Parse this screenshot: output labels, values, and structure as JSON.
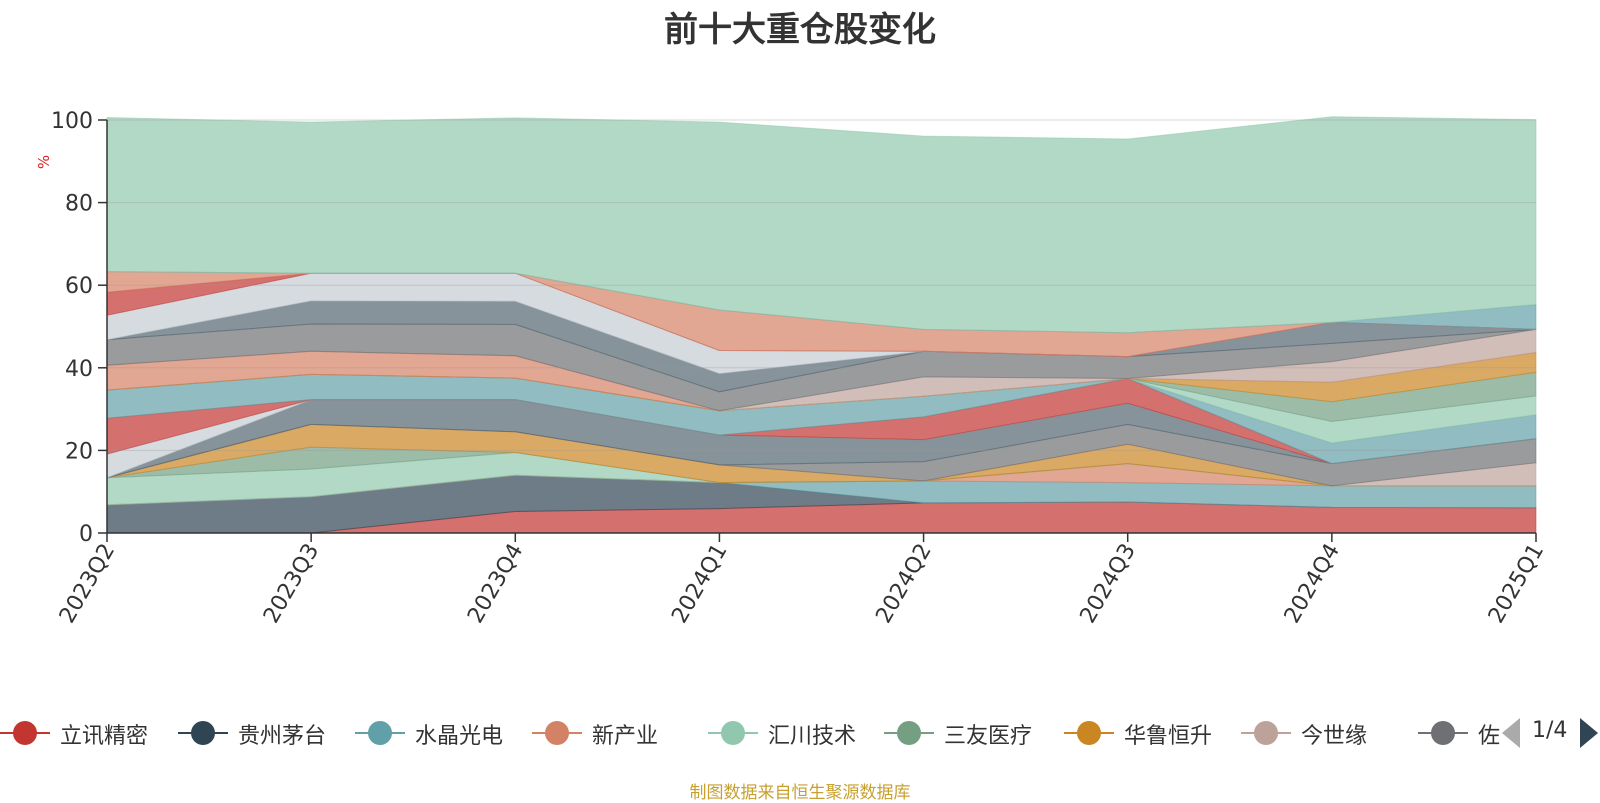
{
  "title": "前十大重仓股变化",
  "source_text": "制图数据来自恒生聚源数据库",
  "pager": {
    "text": "1/4"
  },
  "chart_data": {
    "type": "area",
    "stacked": true,
    "title": "前十大重仓股变化",
    "ylabel": "%",
    "ylim": [
      0,
      100
    ],
    "yticks": [
      0,
      20,
      40,
      60,
      80,
      100
    ],
    "grid": true,
    "legend_position": "bottom",
    "categories": [
      "2023Q2",
      "2023Q3",
      "2023Q4",
      "2024Q1",
      "2024Q2",
      "2024Q3",
      "2024Q4",
      "2025Q1"
    ],
    "series": [
      {
        "name": "立讯精密",
        "color": "#c23531",
        "values": [
          0,
          0,
          5.2,
          5.9,
          7.3,
          7.5,
          6.2,
          6.1
        ]
      },
      {
        "name": "贵州茅台",
        "color": "#2f4554",
        "values": [
          6.8,
          8.8,
          8.8,
          6.3,
          0,
          0,
          0,
          0
        ]
      },
      {
        "name": "水晶光电",
        "color": "#61a0a8",
        "values": [
          0,
          0,
          0,
          0,
          5.3,
          4.7,
          5.2,
          5.3
        ]
      },
      {
        "name": "新产业",
        "color": "#d48265",
        "values": [
          0,
          0,
          0,
          0,
          0,
          4.6,
          0,
          0
        ]
      },
      {
        "name": "汇川技术",
        "color": "#91c7ae",
        "values": [
          6.6,
          6.7,
          5.5,
          0,
          0,
          0,
          0,
          0
        ]
      },
      {
        "name": "三友医疗",
        "color": "#749f83",
        "values": [
          0,
          5.3,
          0,
          0,
          0,
          0,
          0,
          0
        ]
      },
      {
        "name": "华鲁恒升",
        "color": "#ca8622",
        "values": [
          0,
          5.5,
          5.0,
          4.3,
          0,
          4.7,
          0,
          0
        ]
      },
      {
        "name": "今世缘",
        "color": "#bda29a",
        "values": [
          0,
          0,
          0,
          0,
          0,
          0,
          0,
          5.6
        ]
      },
      {
        "name": "佐力药业",
        "color": "#6e7074",
        "values": [
          0,
          0,
          0,
          0,
          4.7,
          4.8,
          5.4,
          5.8
        ]
      },
      {
        "name": "",
        "color": "#546570",
        "values": [
          0,
          6.0,
          7.8,
          7.2,
          5.3,
          5.1,
          0,
          0
        ]
      },
      {
        "name": "",
        "color": "#c4ccd3",
        "values": [
          5.7,
          0,
          0,
          0,
          0,
          0,
          0,
          0
        ]
      },
      {
        "name": "",
        "color": "#c23531",
        "values": [
          8.7,
          0,
          0,
          0,
          5.5,
          6.0,
          0,
          0
        ]
      },
      {
        "name": "",
        "color": "#61a0a8",
        "values": [
          6.8,
          6.1,
          5.2,
          5.9,
          5.0,
          0,
          5.0,
          5.8
        ]
      },
      {
        "name": "",
        "color": "#91c7ae",
        "values": [
          0,
          0,
          0,
          0,
          0,
          0,
          5.2,
          4.6
        ]
      },
      {
        "name": "",
        "color": "#749f83",
        "values": [
          0,
          0,
          0,
          0,
          0,
          0,
          4.8,
          5.7
        ]
      },
      {
        "name": "",
        "color": "#ca8622",
        "values": [
          0,
          0,
          0,
          0,
          0,
          0,
          4.7,
          4.8
        ]
      },
      {
        "name": "",
        "color": "#d48265",
        "values": [
          6.0,
          5.6,
          5.4,
          0,
          0,
          0,
          0,
          0
        ]
      },
      {
        "name": "",
        "color": "#bda29a",
        "values": [
          0,
          0,
          0,
          0,
          4.7,
          0,
          5.0,
          5.6
        ]
      },
      {
        "name": "",
        "color": "#6e7074",
        "values": [
          6.2,
          6.6,
          7.6,
          4.6,
          6.2,
          5.3,
          4.4,
          0
        ]
      },
      {
        "name": "",
        "color": "#546570",
        "values": [
          0,
          5.6,
          5.6,
          4.4,
          0,
          0,
          5.1,
          0
        ]
      },
      {
        "name": "",
        "color": "#c4ccd3",
        "values": [
          5.9,
          6.7,
          6.8,
          5.6,
          0,
          0,
          0,
          0
        ]
      },
      {
        "name": "",
        "color": "#c23531",
        "values": [
          5.6,
          0,
          0,
          0,
          0,
          0,
          0,
          0
        ]
      },
      {
        "name": "",
        "color": "#d48265",
        "values": [
          5.0,
          0,
          0,
          9.8,
          5.3,
          5.8,
          0,
          0
        ]
      },
      {
        "name": "",
        "color": "#61a0a8",
        "values": [
          0,
          0,
          0,
          0,
          0,
          0,
          0,
          6.0
        ]
      },
      {
        "name": "",
        "color": "#91c7ae",
        "values": [
          37.3,
          36.6,
          37.6,
          45.5,
          46.8,
          46.9,
          49.8,
          44.8
        ]
      }
    ]
  }
}
